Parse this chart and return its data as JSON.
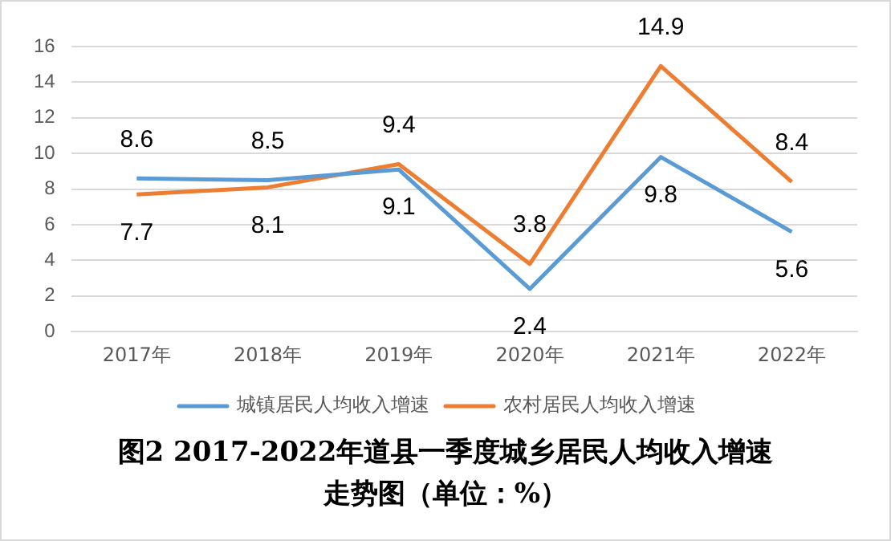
{
  "chart_data": {
    "type": "line",
    "title": "图2 2017-2022年道县一季度城乡居民人均收入增速走势图（单位：%）",
    "categories": [
      "2017年",
      "2018年",
      "2019年",
      "2020年",
      "2021年",
      "2022年"
    ],
    "series": [
      {
        "name": "城镇居民人均收入增速",
        "color": "#5b9bd5",
        "values": [
          8.6,
          8.5,
          9.1,
          2.4,
          9.8,
          5.6
        ]
      },
      {
        "name": "农村居民人均收入增速",
        "color": "#ed7d31",
        "values": [
          7.7,
          8.1,
          9.4,
          3.8,
          14.9,
          8.4
        ]
      }
    ],
    "ylim": [
      0,
      16
    ],
    "yticks": [
      0,
      2,
      4,
      6,
      8,
      10,
      12,
      14,
      16
    ],
    "grid": "y",
    "legend": "bottom",
    "marker": "none",
    "data_labels": true
  }
}
